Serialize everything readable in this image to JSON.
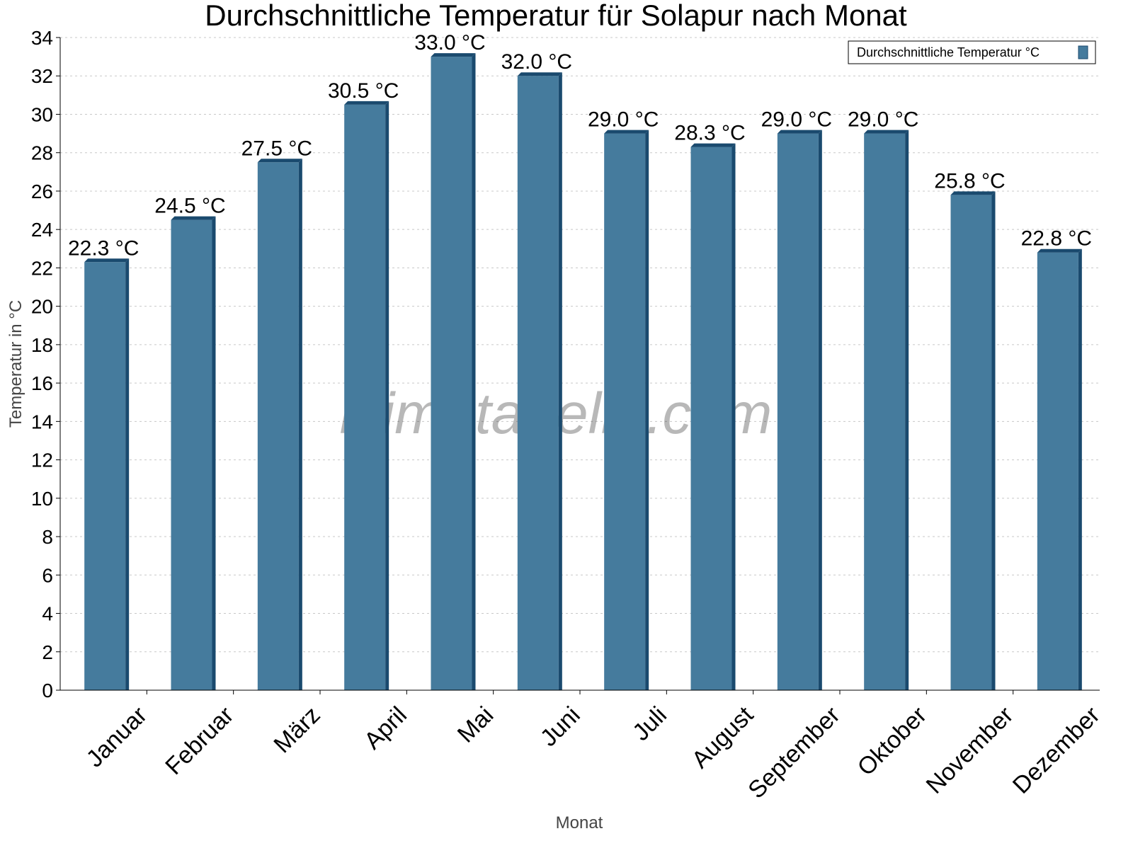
{
  "chart_data": {
    "type": "bar",
    "title": "Durchschnittliche Temperatur für Solapur nach Monat",
    "xlabel": "Monat",
    "ylabel": "Temperatur in °C",
    "categories": [
      "Januar",
      "Februar",
      "März",
      "April",
      "Mai",
      "Juni",
      "Juli",
      "August",
      "September",
      "Oktober",
      "November",
      "Dezember"
    ],
    "series": [
      {
        "name": "Durchschnittliche Temperatur °C",
        "values": [
          22.3,
          24.5,
          27.5,
          30.5,
          33.0,
          32.0,
          29.0,
          28.3,
          29.0,
          29.0,
          25.8,
          22.8
        ],
        "labels": [
          "22.3 °C",
          "24.5 °C",
          "27.5 °C",
          "30.5 °C",
          "33.0 °C",
          "32.0 °C",
          "29.0 °C",
          "28.3 °C",
          "29.0 °C",
          "29.0 °C",
          "25.8 °C",
          "22.8 °C"
        ]
      }
    ],
    "ylim": [
      0,
      34
    ],
    "yticks": [
      0,
      2,
      4,
      6,
      8,
      10,
      12,
      14,
      16,
      18,
      20,
      22,
      24,
      26,
      28,
      30,
      32,
      34
    ],
    "grid": true,
    "legend_position": "top-right",
    "watermark": "klimatabelle.com",
    "colors": {
      "bar": "#457b9d",
      "bar_dark": "#1a4a6e",
      "grid": "#c8c8c8"
    }
  }
}
